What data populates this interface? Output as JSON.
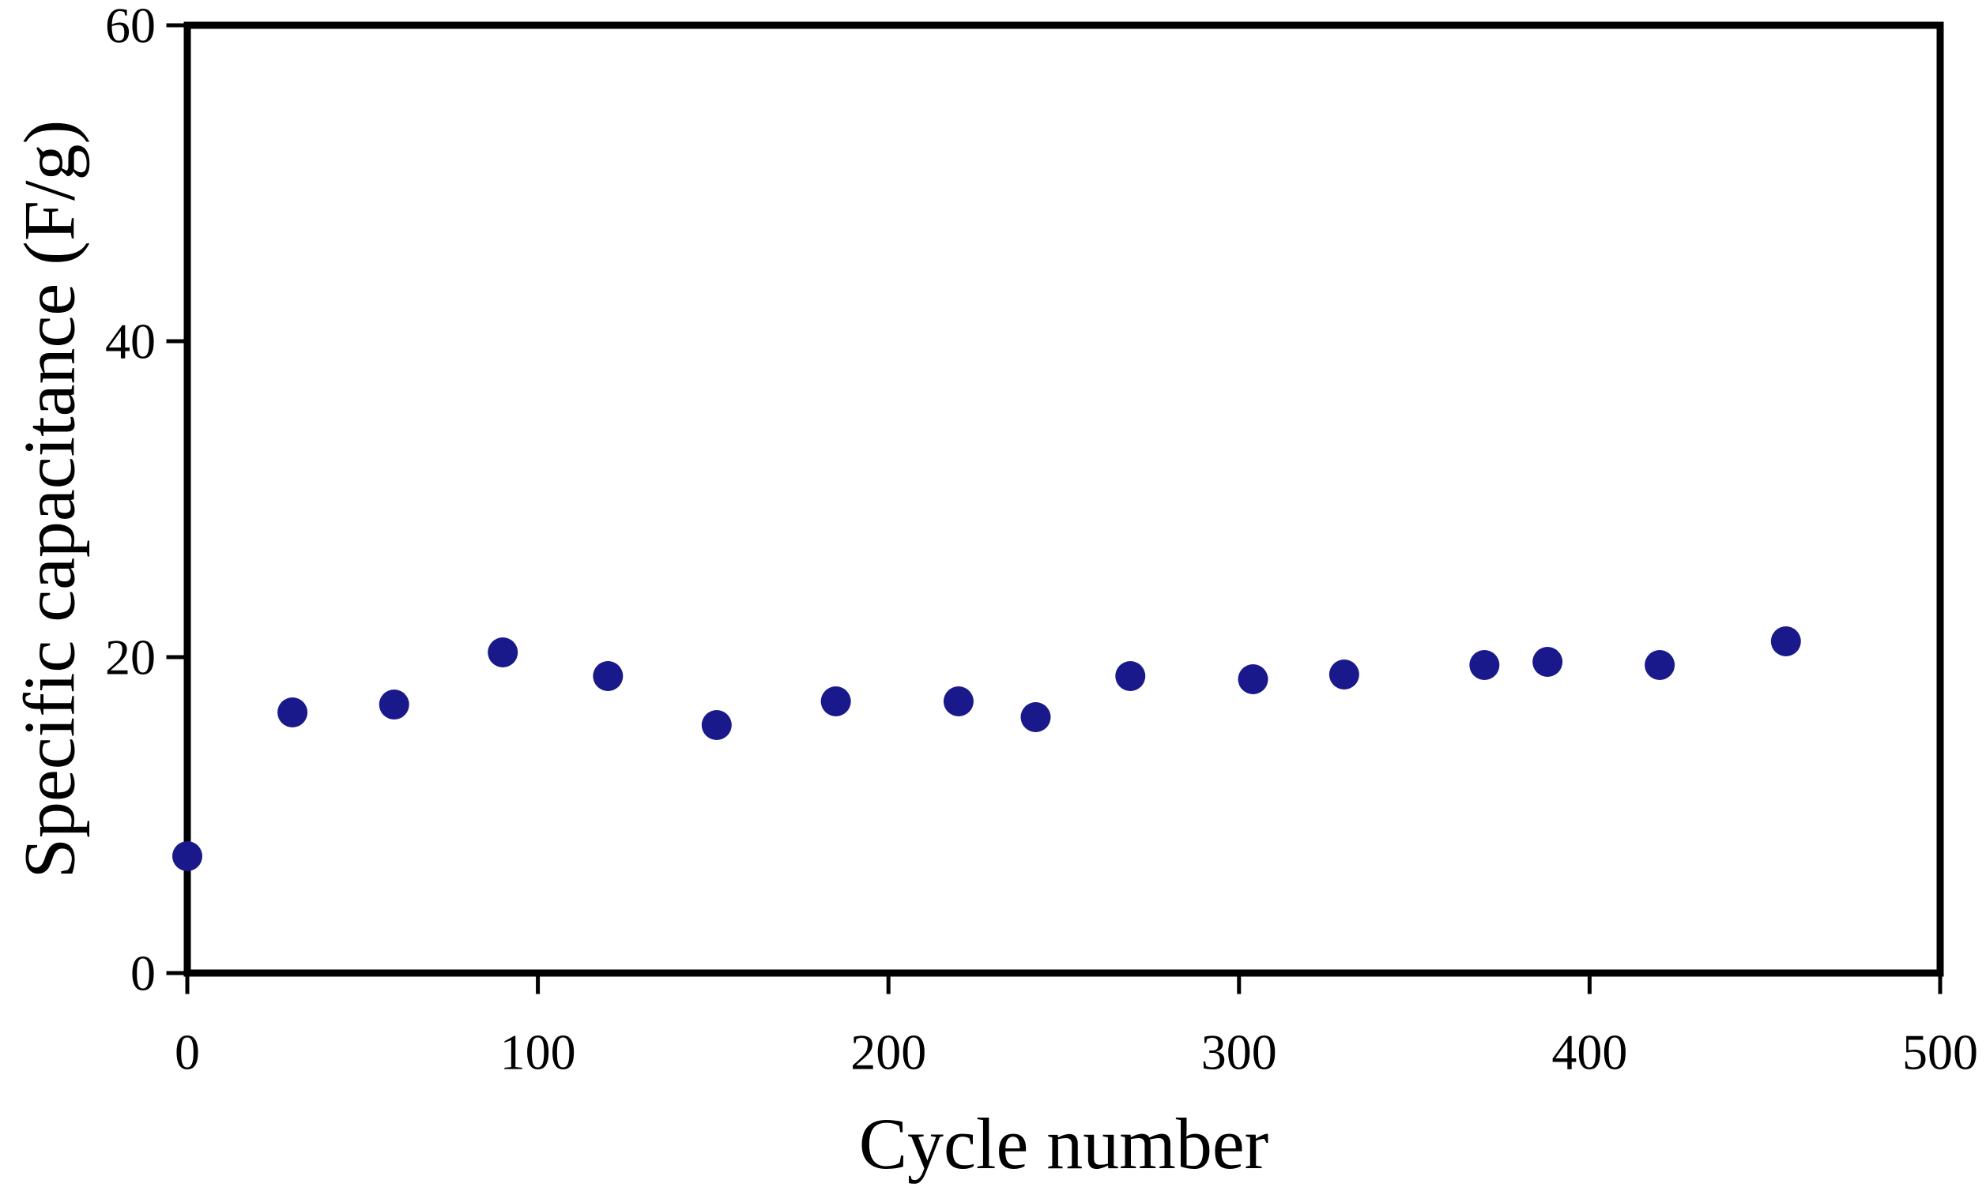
{
  "chart_data": {
    "type": "scatter",
    "title": "",
    "xlabel": "Cycle number",
    "ylabel": "Specific capacitance (F/g)",
    "xlim": [
      0,
      500
    ],
    "ylim": [
      0,
      60
    ],
    "x_ticks": [
      "0",
      "100",
      "200",
      "300",
      "400",
      "500"
    ],
    "x_tick_values": [
      0,
      100,
      200,
      300,
      400,
      500
    ],
    "y_ticks": [
      "0",
      "20",
      "40",
      "60"
    ],
    "y_tick_values": [
      0,
      20,
      40,
      60
    ],
    "grid": false,
    "legend": null,
    "axis_color": "#000000",
    "background_color": "#ffffff",
    "series": [
      {
        "name": "specific capacitance vs cycle number",
        "marker": "circle",
        "marker_color": "#19198c",
        "points": [
          {
            "x": 0,
            "y": 7.4
          },
          {
            "x": 30,
            "y": 16.5
          },
          {
            "x": 59,
            "y": 17.0
          },
          {
            "x": 90,
            "y": 20.3
          },
          {
            "x": 120,
            "y": 18.8
          },
          {
            "x": 151,
            "y": 15.7
          },
          {
            "x": 185,
            "y": 17.2
          },
          {
            "x": 220,
            "y": 17.2
          },
          {
            "x": 242,
            "y": 16.2
          },
          {
            "x": 269,
            "y": 18.8
          },
          {
            "x": 304,
            "y": 18.6
          },
          {
            "x": 330,
            "y": 18.9
          },
          {
            "x": 370,
            "y": 19.5
          },
          {
            "x": 388,
            "y": 19.7
          },
          {
            "x": 420,
            "y": 19.5
          },
          {
            "x": 456,
            "y": 21.0
          }
        ]
      }
    ]
  }
}
